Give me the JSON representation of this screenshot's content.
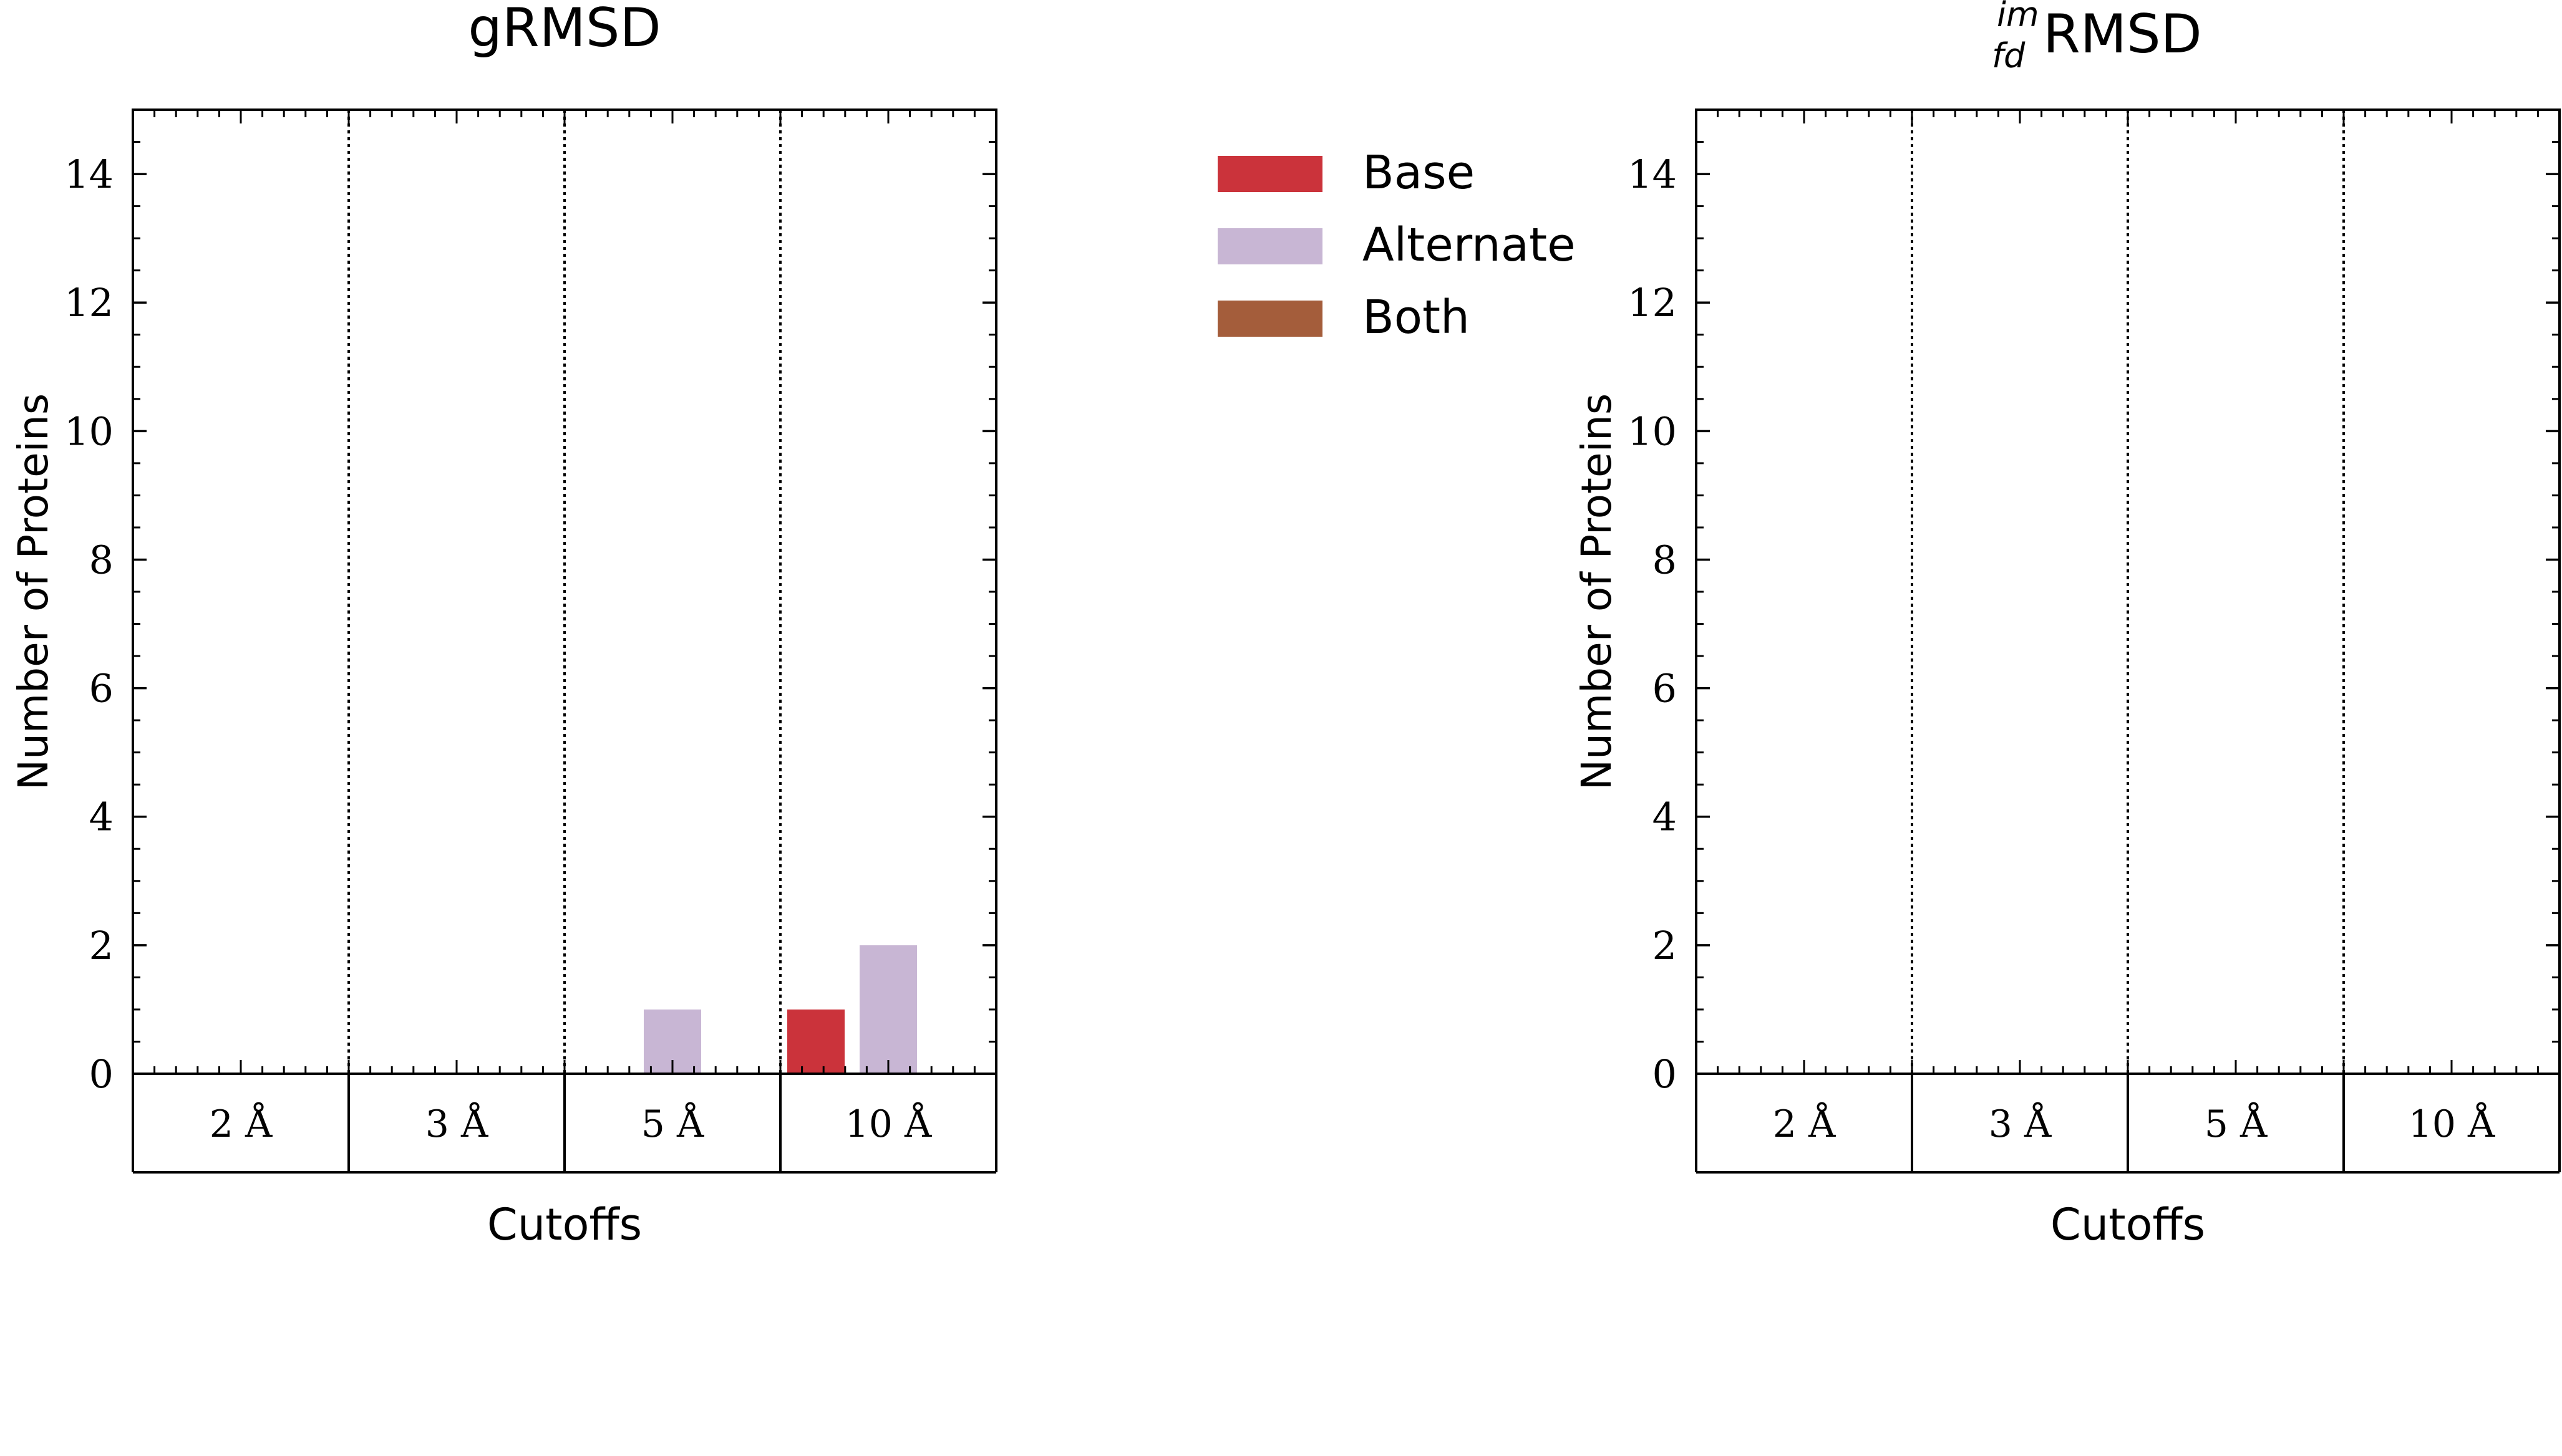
{
  "chart_data": [
    {
      "type": "bar",
      "title": "gRMSD",
      "xlabel": "Cutoffs",
      "ylabel": "Number of Proteins",
      "categories": [
        "2 Å",
        "3 Å",
        "5 Å",
        "10 Å"
      ],
      "series": [
        {
          "name": "Base",
          "color": "#cb333b",
          "values": [
            0,
            0,
            0,
            1
          ]
        },
        {
          "name": "Alternate",
          "color": "#c8b6d4",
          "values": [
            0,
            0,
            1,
            2
          ]
        },
        {
          "name": "Both",
          "color": "#a45d3b",
          "values": [
            0,
            0,
            0,
            0
          ]
        }
      ],
      "ylim": [
        0,
        15
      ],
      "yticks": [
        "0",
        "2",
        "4",
        "6",
        "8",
        "10",
        "12",
        "14"
      ],
      "grid": false
    },
    {
      "type": "bar",
      "title_parts": {
        "sup": "im",
        "sub": "fd",
        "main": "RMSD"
      },
      "xlabel": "Cutoffs",
      "ylabel": "Number of Proteins",
      "categories": [
        "2 Å",
        "3 Å",
        "5 Å",
        "10 Å"
      ],
      "series": [
        {
          "name": "Base",
          "color": "#cb333b",
          "values": [
            0,
            0,
            0,
            0
          ]
        },
        {
          "name": "Alternate",
          "color": "#c8b6d4",
          "values": [
            0,
            0,
            0,
            0
          ]
        },
        {
          "name": "Both",
          "color": "#a45d3b",
          "values": [
            0,
            0,
            0,
            0
          ]
        }
      ],
      "ylim": [
        0,
        15
      ],
      "yticks": [
        "0",
        "2",
        "4",
        "6",
        "8",
        "10",
        "12",
        "14"
      ],
      "grid": false
    }
  ],
  "legend": {
    "placement": "between-panels",
    "items": [
      {
        "label": "Base",
        "color": "#cb333b"
      },
      {
        "label": "Alternate",
        "color": "#c8b6d4"
      },
      {
        "label": "Both",
        "color": "#a45d3b"
      }
    ]
  }
}
